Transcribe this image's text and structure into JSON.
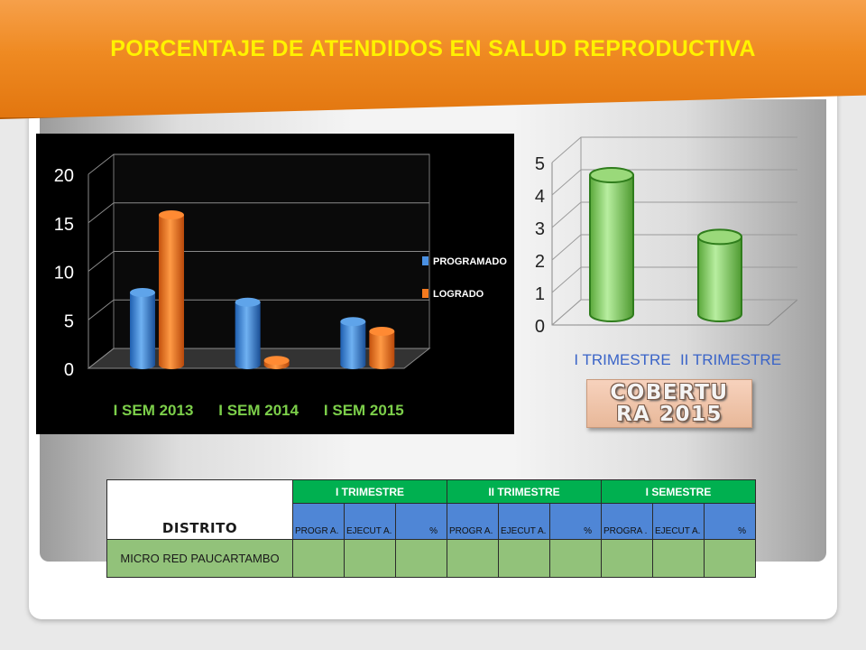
{
  "title": "PORCENTAJE DE ATENDIDOS EN SALUD REPRODUCTIVA",
  "cobertura_label": "COBERTURA 2015",
  "chart_data": [
    {
      "type": "bar",
      "categories": [
        "I SEM 2013",
        "I SEM 2014",
        "I SEM 2015"
      ],
      "series": [
        {
          "name": "PROGRAMADO",
          "values": [
            8,
            7,
            5
          ]
        },
        {
          "name": "LOGRADO",
          "values": [
            16,
            1,
            4
          ]
        }
      ],
      "ylim": [
        0,
        20
      ],
      "yticks": [
        "0",
        "5",
        "10",
        "15",
        "20"
      ],
      "legend": "right",
      "colors": {
        "PROGRAMADO": "#4a90e2",
        "LOGRADO": "#f47a1f",
        "background": "#000000"
      }
    },
    {
      "type": "bar",
      "categories": [
        "I TRIMESTRE",
        "II TRIMESTRE"
      ],
      "values": [
        4.5,
        2.6
      ],
      "ylim": [
        0,
        5
      ],
      "yticks": [
        "0",
        "1",
        "2",
        "3",
        "4",
        "5"
      ],
      "colors": {
        "bar": "#8fd16a"
      }
    }
  ],
  "table": {
    "distrito_label": "DISTRITO",
    "periods": [
      "I TRIMESTRE",
      "II TRIMESTRE",
      "I SEMESTRE"
    ],
    "subheaders": [
      [
        "PROGR A.",
        "EJECUT A.",
        "%"
      ],
      [
        "PROGR A.",
        "EJECUT A.",
        "%"
      ],
      [
        "PROGRA .",
        "EJECUT A.",
        "%"
      ]
    ],
    "rows": [
      {
        "name": "MICRO RED PAUCARTAMBO",
        "values": [
          "",
          "",
          "",
          "",
          "",
          "",
          "",
          "",
          ""
        ]
      }
    ]
  }
}
